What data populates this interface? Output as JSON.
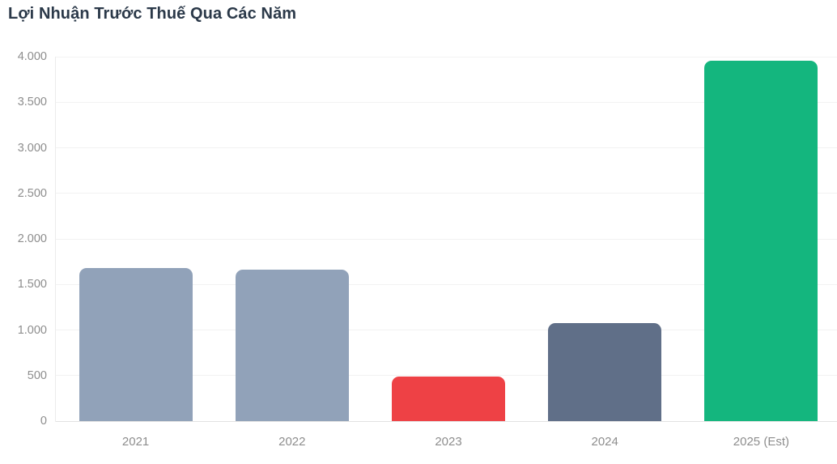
{
  "page": {
    "title": "Lợi Nhuận Trước Thuế Qua Các Năm"
  },
  "chart_data": {
    "type": "bar",
    "title": "Lợi Nhuận Trước Thuế Qua Các Năm",
    "categories": [
      "2021",
      "2022",
      "2023",
      "2024",
      "2025 (Est)"
    ],
    "values": [
      1680,
      1665,
      490,
      1075,
      3955
    ],
    "bar_colors": [
      "#91a2b9",
      "#91a2b9",
      "#ee4145",
      "#606f88",
      "#14b67e"
    ],
    "xlabel": "",
    "ylabel": "",
    "ylim": [
      0,
      4000
    ],
    "ytick_step": 500,
    "ytick_labels": [
      "0",
      "500",
      "1.000",
      "1.500",
      "2.000",
      "2.500",
      "3.000",
      "3.500",
      "4.000"
    ],
    "grid": true,
    "legend_position": "none"
  },
  "style": {
    "title_color": "#2b3949",
    "axis_text_color": "#8d8d8d",
    "grid_color": "#f2f2f2",
    "baseline_color": "#e2e2e2",
    "background": "#ffffff"
  }
}
